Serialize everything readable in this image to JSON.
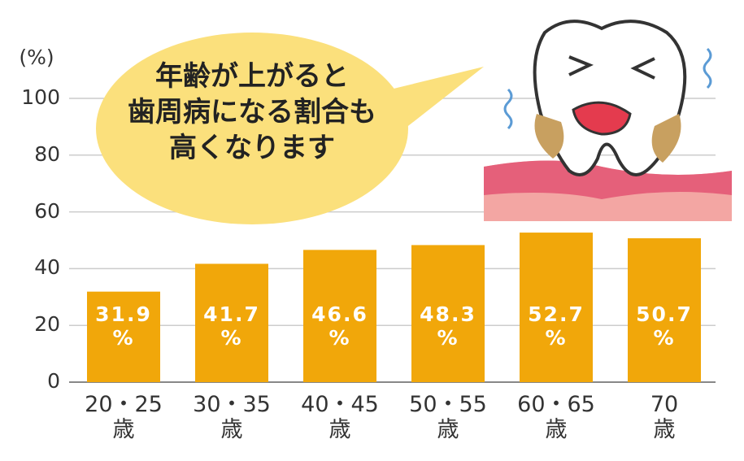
{
  "chart_data": {
    "type": "bar",
    "y_label": "(%)",
    "annotation": "年齢が上がると\n歯周病になる割合も\n高くなります",
    "categories": [
      "20・25\n歳",
      "30・35\n歳",
      "40・45\n歳",
      "50・55\n歳",
      "60・65\n歳",
      "70\n歳"
    ],
    "values": [
      31.9,
      41.7,
      46.6,
      48.3,
      52.7,
      50.7
    ],
    "value_labels": [
      "31.9\n%",
      "41.7\n%",
      "46.6\n%",
      "48.3\n%",
      "52.7\n%",
      "50.7\n%"
    ],
    "color": "#f1a70a",
    "ylim": [
      0,
      100
    ],
    "yticks": [
      0,
      20,
      40,
      60,
      80,
      100
    ],
    "grid": true
  }
}
